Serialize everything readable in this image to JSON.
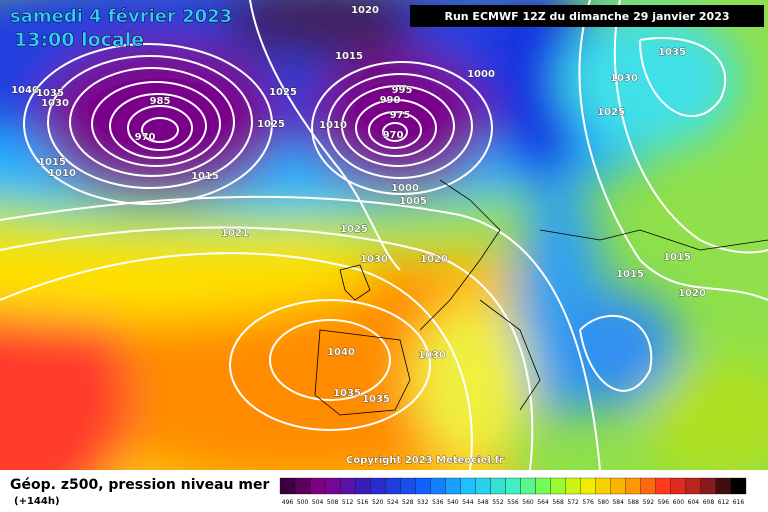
{
  "header": {
    "date": "samedi 4 février 2023",
    "time": "13:00 locale",
    "run": "Run ECMWF 12Z du dimanche 29 janvier 2023"
  },
  "footer": {
    "title": "Géop. z500, pression niveau mer",
    "lead": "(+144h)",
    "copyright": "Copyright 2023 Meteociel.fr"
  },
  "scale": {
    "labels": [
      "496",
      "500",
      "504",
      "508",
      "512",
      "516",
      "520",
      "524",
      "528",
      "532",
      "536",
      "540",
      "544",
      "548",
      "552",
      "556",
      "560",
      "564",
      "568",
      "572",
      "576",
      "580",
      "584",
      "588",
      "592",
      "596",
      "600",
      "604",
      "608",
      "612",
      "616"
    ]
  },
  "isobar_labels": [
    "1020",
    "1015",
    "1025",
    "1025",
    "1010",
    "985",
    "970",
    "1040",
    "1035",
    "1030",
    "1015",
    "1010",
    "1000",
    "995",
    "990",
    "975",
    "970",
    "1000",
    "1005",
    "1025",
    "1030",
    "1020",
    "1021",
    "1040",
    "1035",
    "1035",
    "1030",
    "1035",
    "1030",
    "1025",
    "1015",
    "1015",
    "1020",
    "1015"
  ]
}
